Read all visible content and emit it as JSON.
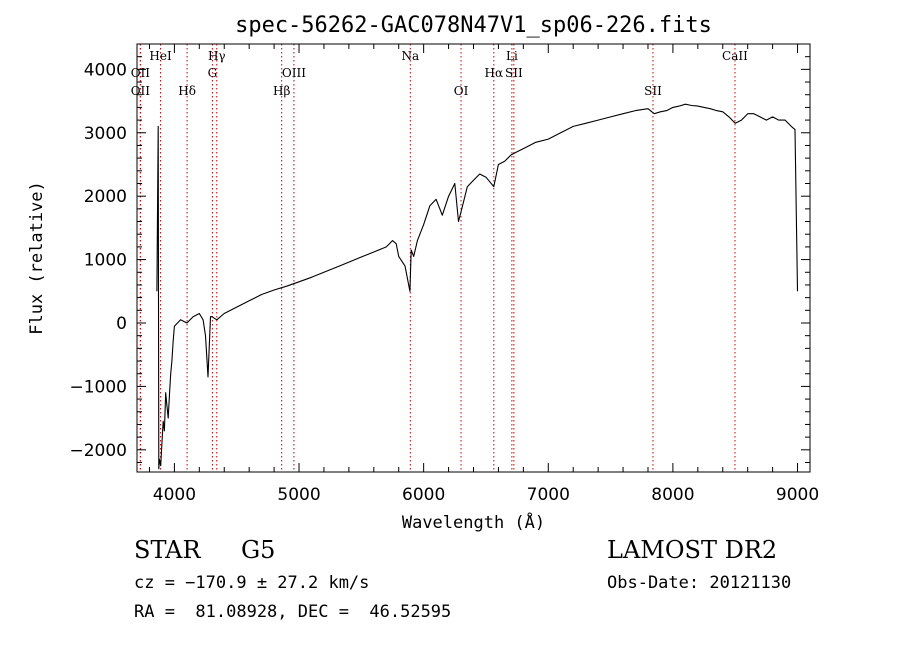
{
  "chart_data": {
    "type": "line",
    "title": "spec-56262-GAC078N47V1_sp06-226.fits",
    "xlabel": "Wavelength (Å)",
    "ylabel": "Flux (relative)",
    "xlim": [
      3700,
      9100
    ],
    "ylim": [
      -2350,
      4400
    ],
    "xticks": [
      4000,
      5000,
      6000,
      7000,
      8000,
      9000
    ],
    "yticks": [
      -2000,
      -1000,
      0,
      1000,
      2000,
      3000,
      4000
    ],
    "grid": false,
    "series": [
      {
        "color": "#000000",
        "x": [
          3860,
          3870,
          3875,
          3880,
          3890,
          3900,
          3910,
          3920,
          3930,
          3940,
          3950,
          3960,
          3970,
          3980,
          3990,
          4000,
          4050,
          4100,
          4150,
          4200,
          4230,
          4250,
          4270,
          4290,
          4300,
          4340,
          4400,
          4500,
          4600,
          4700,
          4800,
          4900,
          5000,
          5100,
          5200,
          5300,
          5400,
          5500,
          5600,
          5700,
          5750,
          5780,
          5800,
          5850,
          5890,
          5900,
          5920,
          5950,
          6000,
          6050,
          6100,
          6150,
          6200,
          6250,
          6280,
          6300,
          6350,
          6400,
          6450,
          6500,
          6563,
          6600,
          6650,
          6700,
          6750,
          6800,
          6900,
          7000,
          7100,
          7200,
          7300,
          7400,
          7500,
          7600,
          7700,
          7800,
          7850,
          7900,
          7950,
          8000,
          8050,
          8100,
          8150,
          8200,
          8250,
          8300,
          8350,
          8400,
          8450,
          8500,
          8550,
          8600,
          8650,
          8700,
          8750,
          8800,
          8850,
          8900,
          8950,
          8980,
          9000
        ],
        "y": [
          500,
          3100,
          -2300,
          -2150,
          -2250,
          -1900,
          -1550,
          -1700,
          -1100,
          -1300,
          -1500,
          -1150,
          -800,
          -600,
          -300,
          -50,
          50,
          0,
          100,
          150,
          50,
          -200,
          -850,
          100,
          100,
          50,
          150,
          250,
          350,
          450,
          520,
          580,
          650,
          720,
          800,
          880,
          960,
          1040,
          1120,
          1200,
          1300,
          1250,
          1050,
          900,
          500,
          1150,
          1050,
          1300,
          1550,
          1850,
          1950,
          1700,
          2000,
          2200,
          1600,
          1750,
          2150,
          2250,
          2350,
          2300,
          2150,
          2500,
          2550,
          2650,
          2700,
          2750,
          2850,
          2900,
          3000,
          3100,
          3150,
          3200,
          3250,
          3300,
          3350,
          3380,
          3300,
          3330,
          3350,
          3400,
          3420,
          3450,
          3430,
          3420,
          3400,
          3380,
          3350,
          3330,
          3250,
          3150,
          3200,
          3300,
          3300,
          3250,
          3200,
          3250,
          3200,
          3200,
          3100,
          3050,
          500
        ]
      }
    ],
    "lines": [
      {
        "label": "OII",
        "x": 3727,
        "row": 2
      },
      {
        "label": "OII",
        "x": 3727,
        "row": 3
      },
      {
        "label": "HeI",
        "x": 3889,
        "row": 1
      },
      {
        "label": "Hδ",
        "x": 4102,
        "row": 3
      },
      {
        "label": "Hγ",
        "x": 4340,
        "row": 1
      },
      {
        "label": "G",
        "x": 4305,
        "row": 2
      },
      {
        "label": "Hβ",
        "x": 4861,
        "row": 3
      },
      {
        "label": "OIII",
        "x": 4959,
        "row": 2
      },
      {
        "label": "Na",
        "x": 5893,
        "row": 1
      },
      {
        "label": "OI",
        "x": 6300,
        "row": 3
      },
      {
        "label": "Li",
        "x": 6708,
        "row": 1
      },
      {
        "label": "Hα",
        "x": 6563,
        "row": 2
      },
      {
        "label": "SII",
        "x": 6724,
        "row": 2
      },
      {
        "label": "SII",
        "x": 7840,
        "row": 3
      },
      {
        "label": "CaII",
        "x": 8498,
        "row": 1
      }
    ]
  },
  "info": {
    "object_class": "STAR",
    "subclass": "G5",
    "survey": "LAMOST DR2",
    "cz": "cz = −170.9 ± 27.2 km/s",
    "obs_date": "Obs-Date: 20121130",
    "coords": "RA =  81.08928, DEC =  46.52595"
  },
  "colors": {
    "spectrum": "#000000",
    "line_markers": "#cc0000",
    "axes": "#000000"
  }
}
